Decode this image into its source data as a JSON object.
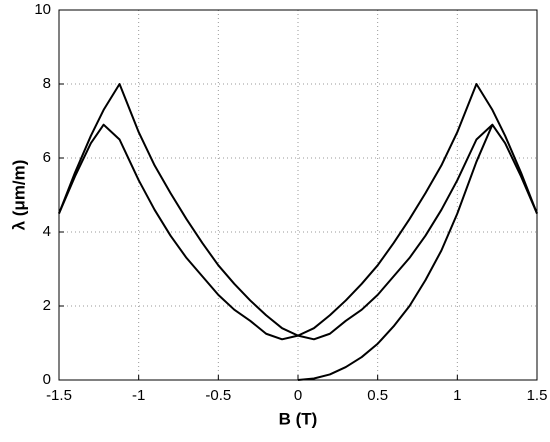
{
  "chart_data": {
    "type": "line",
    "xlabel": "B (T)",
    "ylabel": "λ (μm/m)",
    "x": [
      -1.5,
      -1.4,
      -1.3,
      -1.22,
      -1.12,
      -1,
      -0.9,
      -0.8,
      -0.7,
      -0.6,
      -0.5,
      -0.4,
      -0.3,
      -0.2,
      -0.1,
      0,
      0.1,
      0.2,
      0.3,
      0.4,
      0.5,
      0.6,
      0.7,
      0.8,
      0.9,
      1,
      1.12,
      1.22,
      1.3,
      1.4,
      1.5
    ],
    "series": [
      {
        "color": "#000000",
        "values": [
          4.5,
          5.5,
          6.4,
          6.9,
          6.5,
          5.4,
          4.6,
          3.9,
          3.3,
          2.8,
          2.3,
          1.9,
          1.6,
          1.25,
          1.1,
          1.2,
          1.4,
          1.75,
          2.15,
          2.6,
          3.1,
          3.7,
          4.35,
          5.05,
          5.8,
          6.7,
          8.0,
          7.3,
          6.6,
          5.6,
          4.5
        ]
      },
      {
        "color": "#000000",
        "values": [
          4.5,
          5.6,
          6.6,
          7.3,
          8.0,
          6.7,
          5.8,
          5.05,
          4.35,
          3.7,
          3.1,
          2.6,
          2.15,
          1.75,
          1.4,
          1.2,
          1.1,
          1.25,
          1.6,
          1.9,
          2.3,
          2.8,
          3.3,
          3.9,
          4.6,
          5.4,
          6.5,
          6.9,
          6.4,
          5.5,
          4.5
        ]
      },
      {
        "color": "#000000",
        "values": [
          null,
          null,
          null,
          null,
          null,
          null,
          null,
          null,
          null,
          null,
          null,
          null,
          null,
          null,
          null,
          0,
          0.04,
          0.15,
          0.35,
          0.62,
          0.98,
          1.45,
          2.0,
          2.7,
          3.5,
          4.5,
          5.9,
          6.9,
          null,
          null,
          null
        ]
      }
    ],
    "xlim": [
      -1.5,
      1.5
    ],
    "ylim": [
      0,
      10
    ],
    "xticks": [
      -1.5,
      -1,
      -0.5,
      0,
      0.5,
      1,
      1.5
    ],
    "yticks": [
      0,
      2,
      4,
      6,
      8,
      10
    ],
    "grid": true
  }
}
